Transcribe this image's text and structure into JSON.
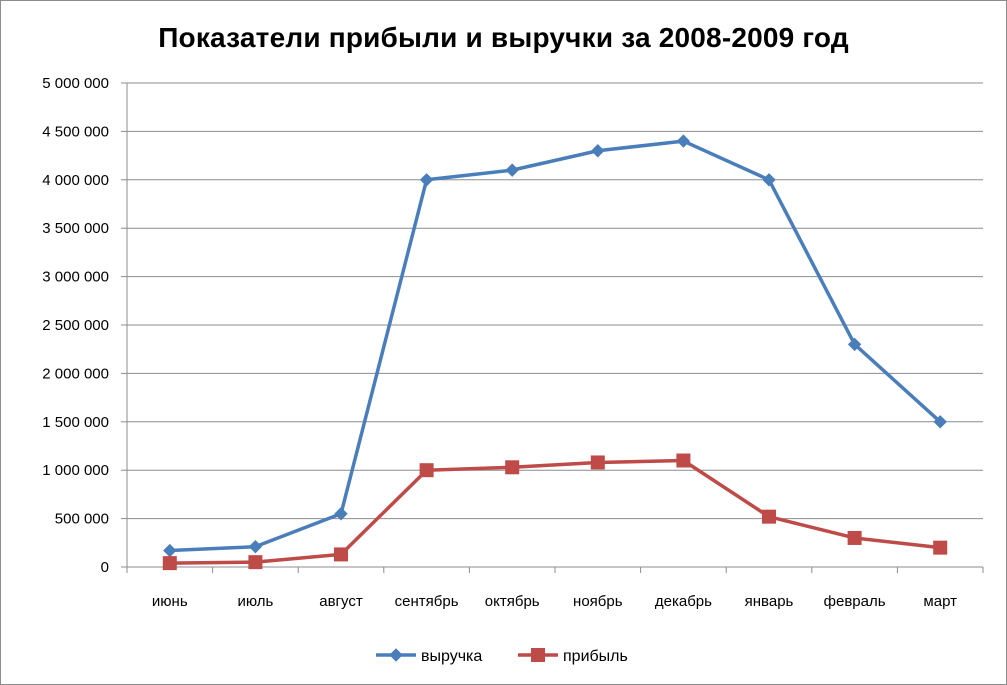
{
  "chart_data": {
    "type": "line",
    "title": "Показатели прибыли и выручки за 2008-2009 год",
    "categories": [
      "июнь",
      "июль",
      "август",
      "сентябрь",
      "октябрь",
      "ноябрь",
      "декабрь",
      "январь",
      "февраль",
      "март"
    ],
    "series": [
      {
        "name": "выручка",
        "color": "#4a7ebb",
        "marker": "diamond",
        "values": [
          170000,
          210000,
          550000,
          4000000,
          4100000,
          4300000,
          4400000,
          4000000,
          2300000,
          1500000
        ]
      },
      {
        "name": "прибыль",
        "color": "#be4b48",
        "marker": "square",
        "values": [
          40000,
          50000,
          130000,
          1000000,
          1030000,
          1080000,
          1100000,
          520000,
          300000,
          200000
        ]
      }
    ],
    "ylim": [
      0,
      5000000
    ],
    "yticks": [
      "0",
      "500 000",
      "1 000 000",
      "1 500 000",
      "2 000 000",
      "2 500 000",
      "3 000 000",
      "3 500 000",
      "4 000 000",
      "4 500 000",
      "5 000 000"
    ],
    "grid": true,
    "legend": "bottom"
  }
}
